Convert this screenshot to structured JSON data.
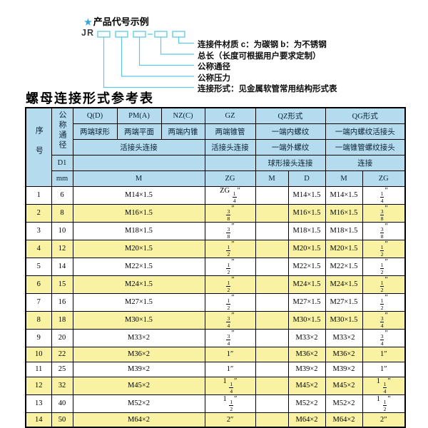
{
  "colors": {
    "header_bg": "#b5dcee",
    "stripe_bg": "#f8f2a2",
    "line_cyan": "#5cc8e8",
    "star_blue": "#29a9e0"
  },
  "diagram": {
    "star": "★",
    "title": "产品代号示例",
    "prefix": "JR",
    "labels": [
      "连接件材质  c：为碳钢  b：为不锈钢",
      "总长（长度可根据用户要求定制）",
      "公称通径",
      "公称压力",
      "连接形式：见金属软管常用结构形式表"
    ]
  },
  "table": {
    "title": "螺母连接形式参考表",
    "header": {
      "xuhao": "序号",
      "gongchengtongjing": "公称通径",
      "d1": "D1",
      "mm": "mm",
      "col_q": "Q(D)",
      "col_pm": "PM(A)",
      "col_nz": "NZ(C)",
      "col_gz": "GZ",
      "col_qz": "QZ形式",
      "col_qg": "QG形式",
      "q_desc": "两端球形",
      "pm_desc": "两端平面",
      "nz_desc": "两端内锥",
      "gz_desc": "两端锥管",
      "qz_desc1": "一端内螺纹",
      "qg_desc1": "一端内螺纹活接头",
      "qpmnz_conn": "活接头连接",
      "gz_conn": "活接头连接",
      "qz_desc2": "一端外螺纹",
      "qg_desc2": "一端锥管螺纹接头",
      "qz_conn": "球形接头连接",
      "qg_conn": "连接",
      "m_label": "M",
      "zg_label": "ZG",
      "qz_m_label": "M",
      "qz_d_label": "D",
      "qg_m_label": "M",
      "qg_zg_label": "ZG"
    },
    "rows": [
      {
        "no": "1",
        "mm": "6",
        "m": "M14×1.5",
        "zg": "ZG 1/4″",
        "qz_m": "",
        "qz_d": "M14×1.5",
        "qg_m": "M14×1.5",
        "qg_zg": "1/4″"
      },
      {
        "no": "2",
        "mm": "8",
        "m": "M16×1.5",
        "zg": "3/8″",
        "qz_m": "",
        "qz_d": "M16×1.5",
        "qg_m": "M16×1.5",
        "qg_zg": "3/8″"
      },
      {
        "no": "3",
        "mm": "10",
        "m": "M18×1.5",
        "zg": "3/8″",
        "qz_m": "",
        "qz_d": "M18×1.5",
        "qg_m": "M18×1.5",
        "qg_zg": "3/8″"
      },
      {
        "no": "4",
        "mm": "12",
        "m": "M20×1.5",
        "zg": "1/2″",
        "qz_m": "",
        "qz_d": "M20×1.5",
        "qg_m": "M20×1.5",
        "qg_zg": "1/2″"
      },
      {
        "no": "5",
        "mm": "14",
        "m": "M22×1.5",
        "zg": "1/2″",
        "qz_m": "",
        "qz_d": "M22×1.5",
        "qg_m": "M22×1.5",
        "qg_zg": "1/2″"
      },
      {
        "no": "6",
        "mm": "15",
        "m": "M24×1.5",
        "zg": "1/2″",
        "qz_m": "",
        "qz_d": "M24×1.5",
        "qg_m": "M24×1.5",
        "qg_zg": "1/2″"
      },
      {
        "no": "7",
        "mm": "16",
        "m": "M27×1.5",
        "zg": "1/2″",
        "qz_m": "",
        "qz_d": "M27×1.5",
        "qg_m": "M27×1.5",
        "qg_zg": "1/2″"
      },
      {
        "no": "8",
        "mm": "18",
        "m": "M30×1.5",
        "zg": "3/4″",
        "qz_m": "",
        "qz_d": "M30×1.5",
        "qg_m": "M30×1.5",
        "qg_zg": "3/4″"
      },
      {
        "no": "9",
        "mm": "20",
        "m": "M33×2",
        "zg": "3/4″",
        "qz_m": "",
        "qz_d": "M33×2",
        "qg_m": "M33×2",
        "qg_zg": "3/4″"
      },
      {
        "no": "10",
        "mm": "22",
        "m": "M36×2",
        "zg": "1″",
        "qz_m": "",
        "qz_d": "M36×2",
        "qg_m": "M36×2",
        "qg_zg": "1″"
      },
      {
        "no": "11",
        "mm": "25",
        "m": "M39×2",
        "zg": "1″",
        "qz_m": "",
        "qz_d": "M39×2",
        "qg_m": "M39×2",
        "qg_zg": "1″"
      },
      {
        "no": "12",
        "mm": "32",
        "m": "M45×2",
        "zg": "1 1/4″",
        "qz_m": "",
        "qz_d": "M45×2",
        "qg_m": "M45×2",
        "qg_zg": "1 1/4″"
      },
      {
        "no": "13",
        "mm": "40",
        "m": "M52×2",
        "zg": "1 1/2″",
        "qz_m": "",
        "qz_d": "M52×2",
        "qg_m": "M52×2",
        "qg_zg": "1 1/2″"
      },
      {
        "no": "14",
        "mm": "50",
        "m": "M64×2",
        "zg": "2″",
        "qz_m": "",
        "qz_d": "M64×2",
        "qg_m": "M64×2",
        "qg_zg": "2″"
      }
    ]
  }
}
